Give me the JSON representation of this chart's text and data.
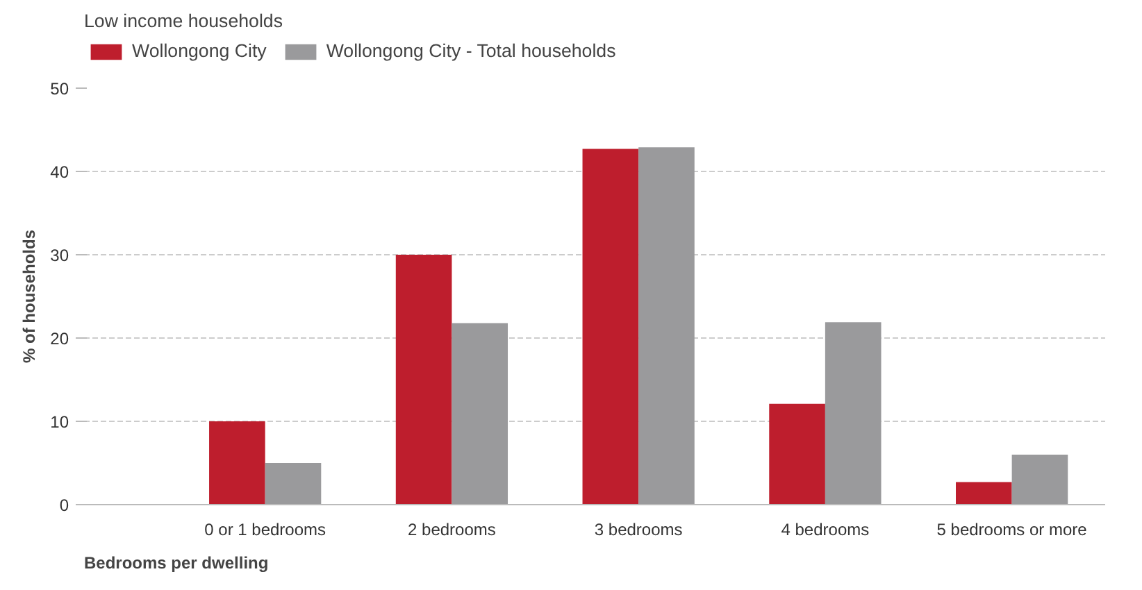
{
  "chart_data": {
    "type": "bar",
    "title": "Low income households",
    "xlabel": "Bedrooms per dwelling",
    "ylabel": "% of households",
    "categories": [
      "0 or 1 bedrooms",
      "2 bedrooms",
      "3 bedrooms",
      "4 bedrooms",
      "5 bedrooms or more"
    ],
    "series": [
      {
        "name": "Wollongong City",
        "color": "#be1e2d",
        "values": [
          10.0,
          30.0,
          42.7,
          12.1,
          2.7
        ]
      },
      {
        "name": "Wollongong City - Total households",
        "color": "#9a9a9c",
        "values": [
          5.0,
          21.8,
          42.9,
          21.9,
          6.0
        ]
      }
    ],
    "ylim": [
      0,
      50
    ],
    "yticks": [
      0,
      10,
      20,
      30,
      40,
      50
    ],
    "grid": "y",
    "legend": "top left"
  }
}
